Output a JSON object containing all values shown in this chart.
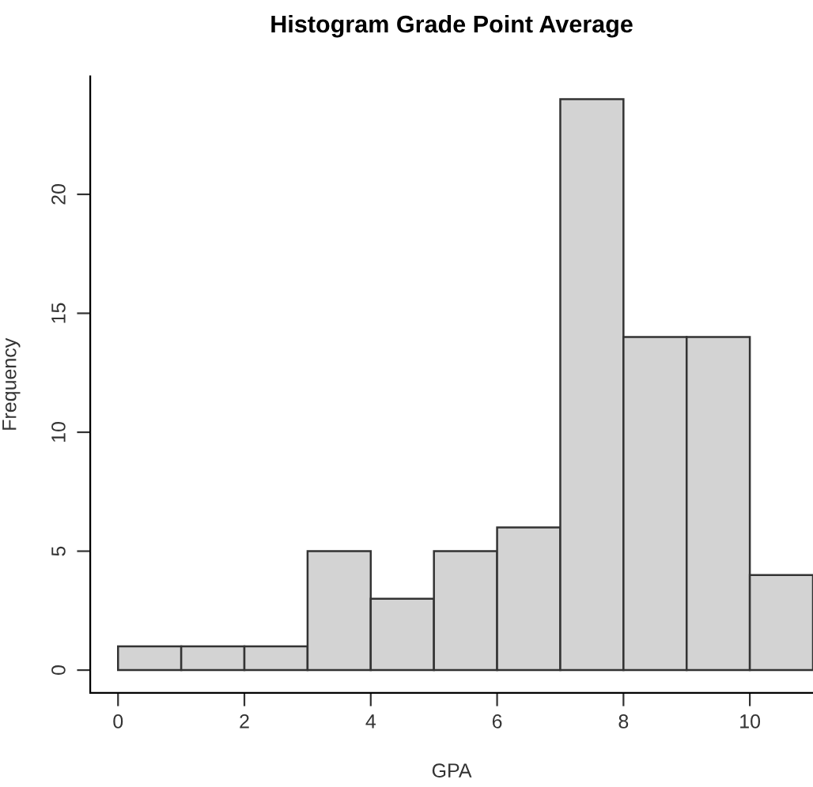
{
  "chart_data": {
    "type": "histogram",
    "title": "Histogram Grade Point Average",
    "xlabel": "GPA",
    "ylabel": "Frequency",
    "bins": [
      0,
      1,
      2,
      3,
      4,
      5,
      6,
      7,
      8,
      9,
      10,
      11
    ],
    "values": [
      1,
      1,
      1,
      5,
      3,
      5,
      6,
      24,
      14,
      14,
      4
    ],
    "color": "#d3d3d3",
    "xlim": [
      -0.44,
      11
    ],
    "ylim": [
      -0.96,
      24.96
    ],
    "xticks": [
      0,
      2,
      4,
      6,
      8,
      10
    ],
    "yticks": [
      0,
      5,
      10,
      15,
      20
    ],
    "grid": false,
    "legend": false
  }
}
